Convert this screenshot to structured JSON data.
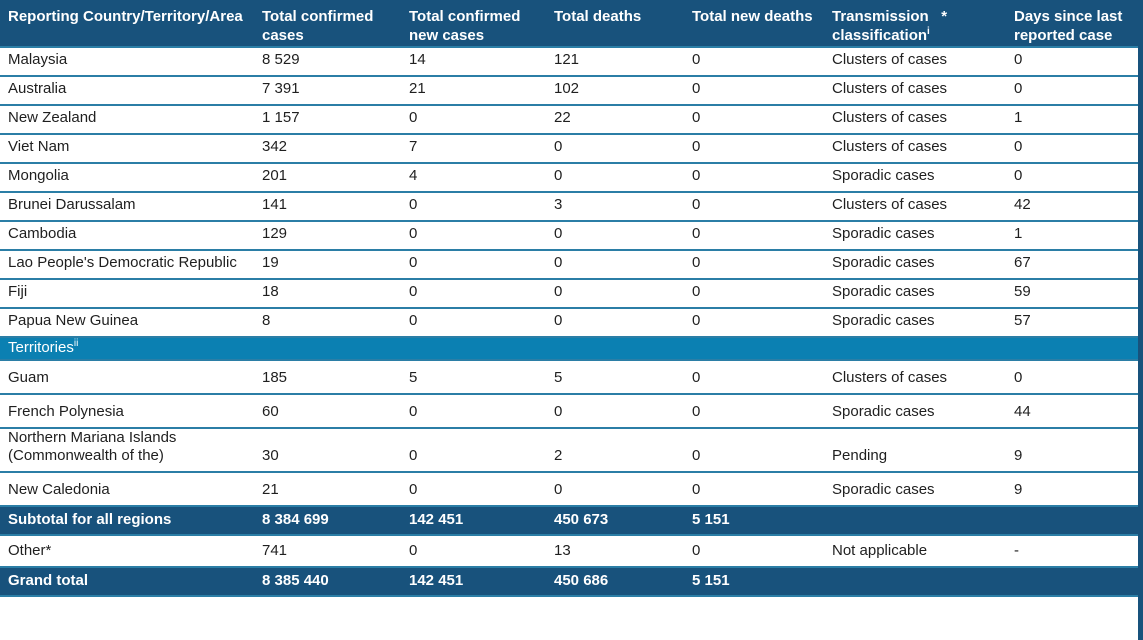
{
  "colors": {
    "header-bg": "#18527C",
    "section-bg": "#0B80B2",
    "line": "#2B7EA6",
    "text": "#1F1F1F",
    "on-dark": "#FFFFFF"
  },
  "columns": [
    {
      "id": "reporting-country",
      "lines": [
        "Reporting Country/Territory/Area"
      ],
      "sup": ""
    },
    {
      "id": "total-confirmed-cases",
      "lines": [
        "Total confirmed",
        "cases"
      ],
      "sup": ""
    },
    {
      "id": "total-confirmed-new-cases",
      "lines": [
        "Total confirmed",
        "new cases"
      ],
      "sup": ""
    },
    {
      "id": "total-deaths",
      "lines": [
        "Total deaths"
      ],
      "sup": ""
    },
    {
      "id": "total-new-deaths",
      "lines": [
        "Total new deaths"
      ],
      "sup": ""
    },
    {
      "id": "transmission-classification",
      "lines": [
        "Transmission   *",
        "classification"
      ],
      "sup": "i"
    },
    {
      "id": "days-since-last-reported-case",
      "lines": [
        "Days since last",
        "reported case"
      ],
      "sup": ""
    }
  ],
  "rows": [
    {
      "kind": "data",
      "group": "country",
      "name": "Malaysia",
      "cells": [
        "8 529",
        "14",
        "121",
        "0",
        "Clusters of cases",
        "0"
      ]
    },
    {
      "kind": "data",
      "group": "country",
      "name": "Australia",
      "cells": [
        "7 391",
        "21",
        "102",
        "0",
        "Clusters of cases",
        "0"
      ]
    },
    {
      "kind": "data",
      "group": "country",
      "name": "New Zealand",
      "cells": [
        "1 157",
        "0",
        "22",
        "0",
        "Clusters of cases",
        "1"
      ]
    },
    {
      "kind": "data",
      "group": "country",
      "name": "Viet Nam",
      "cells": [
        "342",
        "7",
        "0",
        "0",
        "Clusters of cases",
        "0"
      ]
    },
    {
      "kind": "data",
      "group": "country",
      "name": "Mongolia",
      "cells": [
        "201",
        "4",
        "0",
        "0",
        "Sporadic cases",
        "0"
      ]
    },
    {
      "kind": "data",
      "group": "country",
      "name": "Brunei Darussalam",
      "cells": [
        "141",
        "0",
        "3",
        "0",
        "Clusters of cases",
        "42"
      ]
    },
    {
      "kind": "data",
      "group": "country",
      "name": "Cambodia",
      "cells": [
        "129",
        "0",
        "0",
        "0",
        "Sporadic cases",
        "1"
      ]
    },
    {
      "kind": "data",
      "group": "country",
      "name": "Lao People's Democratic Republic",
      "cells": [
        "19",
        "0",
        "0",
        "0",
        "Sporadic cases",
        "67"
      ]
    },
    {
      "kind": "data",
      "group": "country",
      "name": "Fiji",
      "cells": [
        "18",
        "0",
        "0",
        "0",
        "Sporadic cases",
        "59"
      ]
    },
    {
      "kind": "data",
      "group": "country",
      "name": "Papua New Guinea",
      "cells": [
        "8",
        "0",
        "0",
        "0",
        "Sporadic cases",
        "57"
      ]
    },
    {
      "kind": "section",
      "label": "Territories",
      "sup": "ii"
    },
    {
      "kind": "data",
      "group": "territory",
      "name": "Guam",
      "cells": [
        "185",
        "5",
        "5",
        "0",
        "Clusters of cases",
        "0"
      ]
    },
    {
      "kind": "data",
      "group": "territory",
      "name": "French Polynesia",
      "cells": [
        "60",
        "0",
        "0",
        "0",
        "Sporadic cases",
        "44"
      ]
    },
    {
      "kind": "data",
      "group": "territory",
      "name": "Northern Mariana Islands (Commonwealth of the)",
      "cells": [
        "30",
        "0",
        "2",
        "0",
        "Pending",
        "9"
      ]
    },
    {
      "kind": "data",
      "group": "territory",
      "name": "New Caledonia",
      "cells": [
        "21",
        "0",
        "0",
        "0",
        "Sporadic cases",
        "9"
      ]
    },
    {
      "kind": "total",
      "name": "Subtotal for all regions",
      "cells": [
        "8 384 699",
        "142 451",
        "450 673",
        "5 151",
        "",
        ""
      ]
    },
    {
      "kind": "data",
      "group": "other",
      "name": "Other*",
      "cells": [
        "741",
        "0",
        "13",
        "0",
        "Not applicable",
        "-"
      ]
    },
    {
      "kind": "total",
      "name": "Grand total",
      "cells": [
        "8 385 440",
        "142 451",
        "450 686",
        "5 151",
        "",
        ""
      ]
    }
  ]
}
